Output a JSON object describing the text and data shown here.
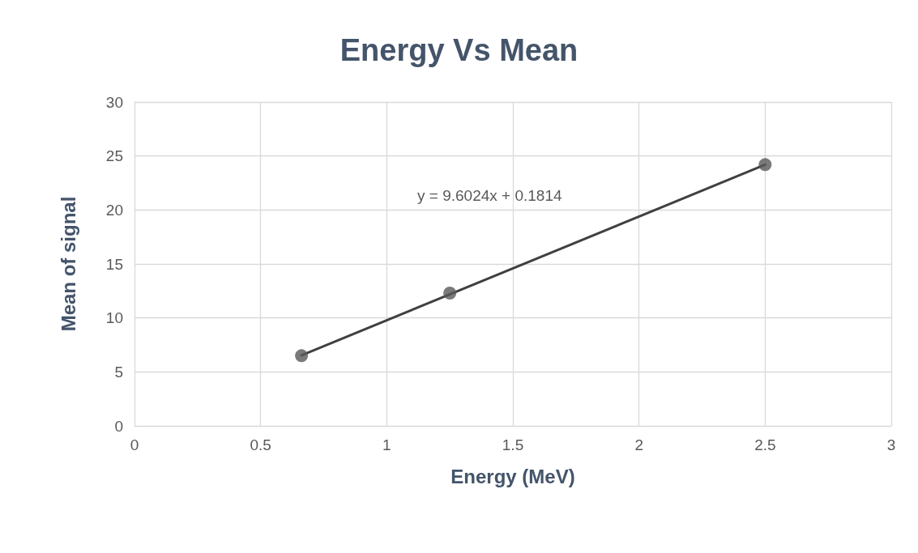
{
  "chart_data": {
    "type": "scatter",
    "title": "Energy Vs Mean",
    "xlabel": "Energy (MeV)",
    "ylabel": "Mean of signal",
    "series": [
      {
        "color": "#595959",
        "marker": "circle",
        "x": [
          0.662,
          1.25,
          2.5
        ],
        "values": [
          6.5,
          12.3,
          24.2
        ]
      },
      {
        "type": "line",
        "color": "#404040",
        "marker": "none",
        "x": [
          0.662,
          2.5
        ],
        "values": [
          6.54,
          24.19
        ]
      }
    ],
    "annotations": [
      "y = 9.6024x + 0.1814"
    ],
    "xlim": [
      0,
      3
    ],
    "xticks": [
      0,
      0.5,
      1,
      1.5,
      2,
      2.5,
      3
    ],
    "ylim": [
      0,
      30
    ],
    "yticks": [
      0,
      5,
      10,
      15,
      20,
      25,
      30
    ],
    "grid": true
  }
}
